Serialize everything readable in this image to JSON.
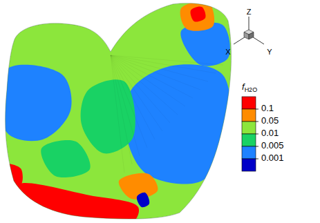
{
  "chart_data": {
    "type": "surface_contour",
    "axes_triad": [
      "Z",
      "X",
      "Y"
    ],
    "colorbar": {
      "label": "f",
      "label_subscript": "H2O",
      "ticks": [
        0.1,
        0.05,
        0.01,
        0.005,
        0.001
      ],
      "colors": [
        "#ff0000",
        "#ff8c00",
        "#8ce63c",
        "#19d264",
        "#1e82ff",
        "#0000c8"
      ]
    },
    "regions": [
      0.02,
      0.003,
      0.003,
      0.003,
      0.007,
      0.007,
      0.15,
      0.07,
      0.15,
      0.07,
      0.0008,
      0.15
    ]
  }
}
